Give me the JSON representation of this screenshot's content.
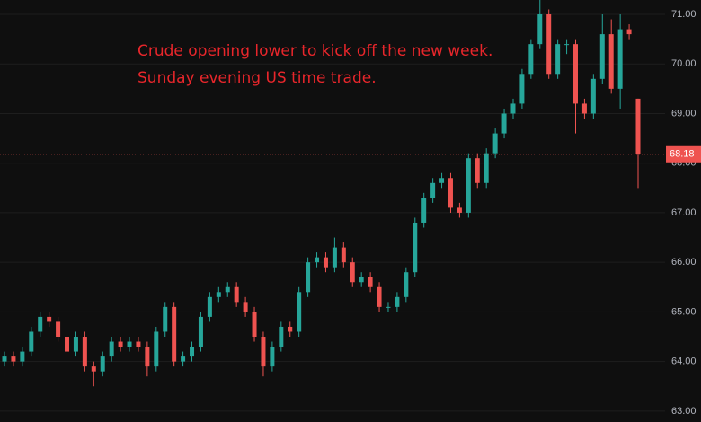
{
  "chart_data": {
    "type": "candlestick",
    "annotation": [
      "Crude opening lower to kick off the new week.",
      "Sunday evening US time trade."
    ],
    "annotation_color": "#e8262b",
    "up_color": "#26a69a",
    "down_color": "#ef5350",
    "open": [
      64.0,
      64.1,
      64.0,
      64.2,
      64.6,
      64.9,
      64.8,
      64.5,
      64.2,
      64.5,
      63.9,
      63.8,
      64.1,
      64.4,
      64.3,
      64.4,
      64.3,
      63.9,
      64.6,
      65.1,
      64.0,
      64.1,
      64.3,
      64.9,
      65.3,
      65.4,
      65.5,
      65.2,
      65.0,
      64.5,
      63.9,
      64.3,
      64.7,
      64.6,
      65.4,
      66.0,
      66.1,
      65.9,
      66.3,
      66.0,
      65.6,
      65.7,
      65.5,
      65.1,
      65.1,
      65.3,
      65.8,
      66.8,
      67.3,
      67.6,
      67.7,
      67.1,
      67.0,
      68.1,
      67.6,
      68.2,
      68.6,
      69.0,
      69.2,
      69.8,
      70.4,
      71.0,
      69.8,
      70.4,
      70.4,
      69.2,
      69.0,
      69.7,
      70.6,
      69.5,
      70.7,
      69.3
    ],
    "high": [
      64.2,
      64.2,
      64.3,
      64.7,
      65.0,
      65.0,
      64.9,
      64.6,
      64.6,
      64.6,
      64.0,
      64.2,
      64.5,
      64.5,
      64.5,
      64.5,
      64.4,
      64.7,
      65.2,
      65.2,
      64.2,
      64.4,
      65.0,
      65.4,
      65.5,
      65.6,
      65.6,
      65.3,
      65.1,
      64.6,
      64.4,
      64.8,
      64.8,
      65.5,
      66.1,
      66.2,
      66.2,
      66.5,
      66.4,
      66.1,
      65.8,
      65.8,
      65.6,
      65.2,
      65.4,
      65.9,
      66.9,
      67.4,
      67.7,
      67.8,
      67.8,
      67.2,
      68.2,
      68.2,
      68.3,
      68.7,
      69.1,
      69.3,
      69.9,
      70.5,
      71.3,
      71.1,
      70.5,
      70.5,
      70.5,
      69.3,
      69.8,
      71.0,
      70.9,
      71.0,
      70.8,
      69.3
    ],
    "low": [
      63.9,
      63.9,
      63.9,
      64.1,
      64.5,
      64.7,
      64.4,
      64.1,
      64.1,
      63.8,
      63.5,
      63.7,
      64.0,
      64.2,
      64.2,
      64.2,
      63.7,
      63.8,
      64.5,
      63.9,
      63.9,
      64.0,
      64.2,
      64.8,
      65.2,
      65.3,
      65.1,
      64.9,
      64.4,
      63.7,
      63.8,
      64.2,
      64.5,
      64.5,
      65.3,
      65.9,
      65.8,
      65.8,
      65.9,
      65.5,
      65.5,
      65.4,
      65.0,
      65.0,
      65.0,
      65.2,
      65.7,
      66.7,
      67.2,
      67.5,
      67.0,
      66.9,
      66.9,
      67.5,
      67.5,
      68.1,
      68.5,
      68.9,
      69.1,
      69.7,
      70.3,
      69.7,
      69.7,
      70.2,
      68.6,
      68.9,
      68.9,
      69.6,
      69.4,
      69.1,
      70.5,
      67.5
    ],
    "close": [
      64.1,
      64.0,
      64.2,
      64.6,
      64.9,
      64.8,
      64.5,
      64.2,
      64.5,
      63.9,
      63.8,
      64.1,
      64.4,
      64.3,
      64.4,
      64.3,
      63.9,
      64.6,
      65.1,
      64.0,
      64.1,
      64.3,
      64.9,
      65.3,
      65.4,
      65.5,
      65.2,
      65.0,
      64.5,
      63.9,
      64.3,
      64.7,
      64.6,
      65.4,
      66.0,
      66.1,
      65.9,
      66.3,
      66.0,
      65.6,
      65.7,
      65.5,
      65.1,
      65.1,
      65.3,
      65.8,
      66.8,
      67.3,
      67.6,
      67.7,
      67.1,
      67.0,
      68.1,
      67.6,
      68.2,
      68.6,
      69.0,
      69.2,
      69.8,
      70.4,
      71.0,
      69.8,
      70.4,
      70.4,
      69.2,
      69.0,
      69.7,
      70.6,
      69.5,
      70.7,
      70.6,
      68.18
    ],
    "last_price": 68.18,
    "ylim": [
      62.78,
      71.29
    ],
    "yticks": [
      {
        "value": 63,
        "label": "63.00"
      },
      {
        "value": 64,
        "label": "64.00"
      },
      {
        "value": 65,
        "label": "65.00"
      },
      {
        "value": 66,
        "label": "66.00"
      },
      {
        "value": 67,
        "label": "67.00"
      },
      {
        "value": 68,
        "label": "68.00"
      },
      {
        "value": 69,
        "label": "69.00"
      },
      {
        "value": 70,
        "label": "70.00"
      },
      {
        "value": 71,
        "label": "71.00"
      }
    ],
    "grid": true
  }
}
